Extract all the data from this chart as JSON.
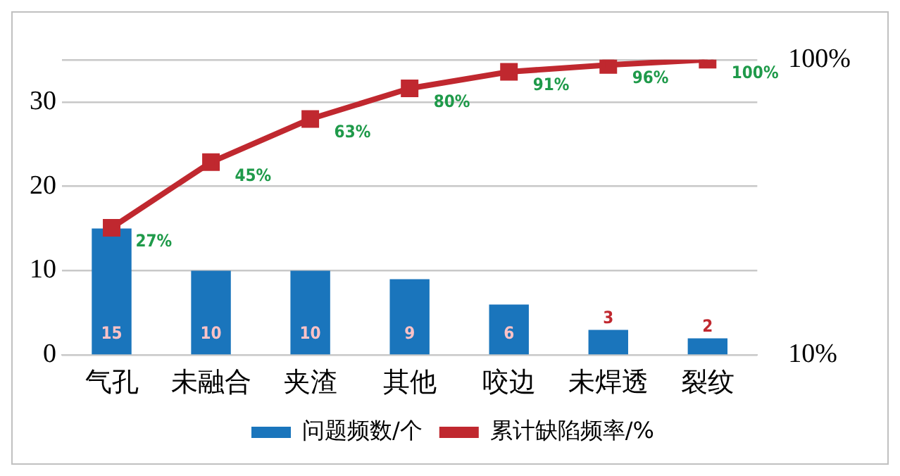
{
  "chart_data": {
    "type": "bar",
    "categories": [
      "气孔",
      "未融合",
      "夹渣",
      "其他",
      "咬边",
      "未焊透",
      "裂纹"
    ],
    "series": [
      {
        "name": "问题频数/个",
        "color": "#1a75bc",
        "values": [
          15,
          10,
          10,
          9,
          6,
          3,
          2
        ],
        "value_labels": [
          "15",
          "10",
          "10",
          "9",
          "6",
          "3",
          "2"
        ]
      },
      {
        "name": "累计缺陷频率/%",
        "type": "line",
        "axis": "y2",
        "color": "#c0282f",
        "values": [
          27,
          45,
          63,
          80,
          91,
          96,
          100
        ],
        "value_labels": [
          "27%",
          "45%",
          "63%",
          "80%",
          "91%",
          "96%",
          "100%"
        ]
      }
    ],
    "ylim": [
      0,
      35
    ],
    "yticks": [
      0,
      10,
      20,
      30,
      {
        "value": 35,
        "label": null
      }
    ],
    "y2lim": [
      10,
      100
    ],
    "y2ticks": [
      {
        "value": 10,
        "label": "10%"
      },
      {
        "value": 100,
        "label": "100%"
      }
    ],
    "log": "y2",
    "grid": "y",
    "legend": "bottom",
    "marker": "square"
  }
}
